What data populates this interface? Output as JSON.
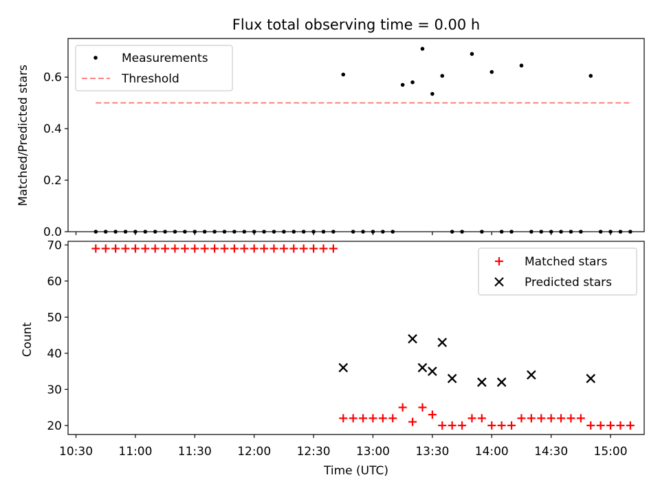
{
  "chart_data": [
    {
      "type": "scatter",
      "title": "Flux total observing time = 0.00 h",
      "ylabel": "Matched/Predicted stars",
      "xlabel": "",
      "xlim": [
        "10:26",
        "15:17"
      ],
      "ylim": [
        0,
        0.75
      ],
      "yticks": [
        0.0,
        0.2,
        0.4,
        0.6
      ],
      "ytick_labels": [
        "0.0",
        "0.2",
        "0.4",
        "0.6"
      ],
      "legend_position": "top-left",
      "series": [
        {
          "name": "Measurements",
          "marker": "dot",
          "color": "#000000",
          "x": [
            "10:40",
            "10:45",
            "10:50",
            "10:55",
            "11:00",
            "11:05",
            "11:10",
            "11:15",
            "11:20",
            "11:25",
            "11:30",
            "11:35",
            "11:40",
            "11:45",
            "11:50",
            "11:55",
            "12:00",
            "12:05",
            "12:10",
            "12:15",
            "12:20",
            "12:25",
            "12:30",
            "12:35",
            "12:40",
            "12:45",
            "12:50",
            "12:55",
            "13:00",
            "13:05",
            "13:10",
            "13:15",
            "13:20",
            "13:25",
            "13:30",
            "13:35",
            "13:40",
            "13:45",
            "13:50",
            "13:55",
            "14:00",
            "14:05",
            "14:10",
            "14:15",
            "14:20",
            "14:25",
            "14:30",
            "14:35",
            "14:40",
            "14:45",
            "14:50",
            "14:55",
            "15:00",
            "15:05",
            "15:10"
          ],
          "y": [
            0,
            0,
            0,
            0,
            0,
            0,
            0,
            0,
            0,
            0,
            0,
            0,
            0,
            0,
            0,
            0,
            0,
            0,
            0,
            0,
            0,
            0,
            0,
            0,
            0,
            0.61,
            0,
            0,
            0,
            0,
            0,
            0.57,
            0.58,
            0.71,
            0.535,
            0.605,
            0,
            0,
            0.69,
            0,
            0.62,
            0,
            0,
            0.645,
            0,
            0,
            0,
            0,
            0,
            0,
            0.605,
            0,
            0,
            0,
            0
          ]
        },
        {
          "name": "Threshold",
          "style": "dashed",
          "color": "#ff7f7f",
          "x": [
            "10:40",
            "15:10"
          ],
          "y": [
            0.5,
            0.5
          ]
        }
      ]
    },
    {
      "type": "scatter",
      "title": "",
      "ylabel": "Count",
      "xlabel": "Time (UTC)",
      "xlim": [
        "10:26",
        "15:17"
      ],
      "ylim": [
        17.5,
        71
      ],
      "xticks": [
        "10:30",
        "11:00",
        "11:30",
        "12:00",
        "12:30",
        "13:00",
        "13:30",
        "14:00",
        "14:30",
        "15:00"
      ],
      "yticks": [
        20,
        30,
        40,
        50,
        60,
        70
      ],
      "ytick_labels": [
        "20",
        "30",
        "40",
        "50",
        "60",
        "70"
      ],
      "legend_position": "top-right",
      "series": [
        {
          "name": "Matched stars",
          "marker": "plus",
          "color": "#ff0000",
          "x": [
            "10:40",
            "10:45",
            "10:50",
            "10:55",
            "11:00",
            "11:05",
            "11:10",
            "11:15",
            "11:20",
            "11:25",
            "11:30",
            "11:35",
            "11:40",
            "11:45",
            "11:50",
            "11:55",
            "12:00",
            "12:05",
            "12:10",
            "12:15",
            "12:20",
            "12:25",
            "12:30",
            "12:35",
            "12:40",
            "12:45",
            "12:50",
            "12:55",
            "13:00",
            "13:05",
            "13:10",
            "13:15",
            "13:20",
            "13:25",
            "13:30",
            "13:35",
            "13:40",
            "13:45",
            "13:50",
            "13:55",
            "14:00",
            "14:05",
            "14:10",
            "14:15",
            "14:20",
            "14:25",
            "14:30",
            "14:35",
            "14:40",
            "14:45",
            "14:50",
            "14:55",
            "15:00",
            "15:05",
            "15:10"
          ],
          "y": [
            69,
            69,
            69,
            69,
            69,
            69,
            69,
            69,
            69,
            69,
            69,
            69,
            69,
            69,
            69,
            69,
            69,
            69,
            69,
            69,
            69,
            69,
            69,
            69,
            69,
            22,
            22,
            22,
            22,
            22,
            22,
            25,
            21,
            25,
            23,
            20,
            20,
            20,
            22,
            22,
            20,
            20,
            20,
            22,
            22,
            22,
            22,
            22,
            22,
            22,
            20,
            20,
            20,
            20,
            20
          ]
        },
        {
          "name": "Predicted stars",
          "marker": "x",
          "color": "#000000",
          "x": [
            "12:45",
            "13:20",
            "13:25",
            "13:30",
            "13:35",
            "13:40",
            "13:55",
            "14:05",
            "14:20",
            "14:50"
          ],
          "y": [
            36,
            44,
            36,
            35,
            43,
            33,
            32,
            32,
            34,
            33
          ]
        }
      ]
    }
  ]
}
